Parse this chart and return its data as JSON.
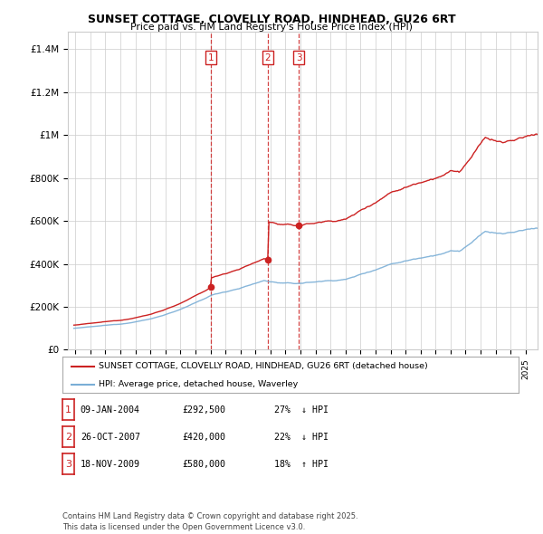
{
  "title": "SUNSET COTTAGE, CLOVELLY ROAD, HINDHEAD, GU26 6RT",
  "subtitle": "Price paid vs. HM Land Registry's House Price Index (HPI)",
  "ylabel_ticks": [
    "£0",
    "£200K",
    "£400K",
    "£600K",
    "£800K",
    "£1M",
    "£1.2M",
    "£1.4M"
  ],
  "ytick_values": [
    0,
    200000,
    400000,
    600000,
    800000,
    1000000,
    1200000,
    1400000
  ],
  "ylim": [
    0,
    1480000
  ],
  "xlim_start": 1994.5,
  "xlim_end": 2025.8,
  "hpi_color": "#7aaed6",
  "price_color": "#cc2222",
  "sale_color": "#cc2222",
  "grid_color": "#cccccc",
  "bg_color": "#ffffff",
  "transactions": [
    {
      "label": "1",
      "date": "09-JAN-2004",
      "x": 2004.03,
      "price": 292500,
      "pct": "27%",
      "dir": "↓"
    },
    {
      "label": "2",
      "date": "26-OCT-2007",
      "x": 2007.82,
      "price": 420000,
      "pct": "22%",
      "dir": "↓"
    },
    {
      "label": "3",
      "date": "18-NOV-2009",
      "x": 2009.89,
      "price": 580000,
      "pct": "18%",
      "dir": "↑"
    }
  ],
  "legend_property_label": "SUNSET COTTAGE, CLOVELLY ROAD, HINDHEAD, GU26 6RT (detached house)",
  "legend_hpi_label": "HPI: Average price, detached house, Waverley",
  "footnote": "Contains HM Land Registry data © Crown copyright and database right 2025.\nThis data is licensed under the Open Government Licence v3.0."
}
